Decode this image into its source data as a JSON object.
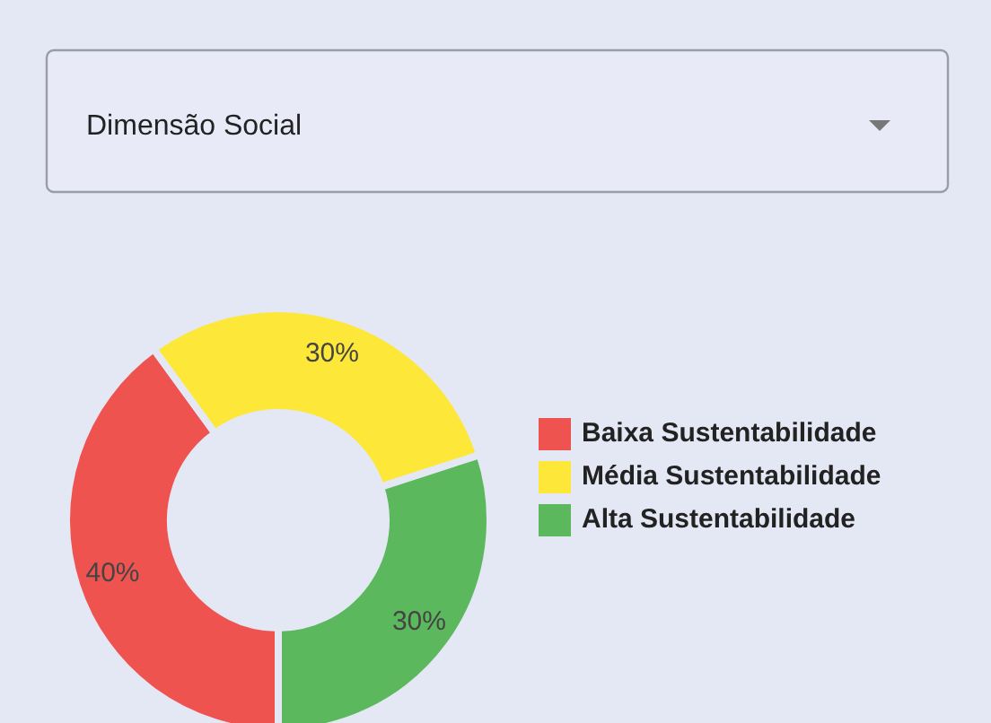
{
  "chart_data": {
    "type": "donut",
    "title": "Dimensão Social",
    "categories": [
      "Baixa Sustentabilidade",
      "Média Sustentabilidade",
      "Alta Sustentabilidade"
    ],
    "values": [
      40,
      30,
      30
    ],
    "colors": [
      "#ef5350",
      "#fde83a",
      "#5cb85c"
    ],
    "value_labels": [
      "40%",
      "30%",
      "30%"
    ],
    "legend": "right"
  }
}
